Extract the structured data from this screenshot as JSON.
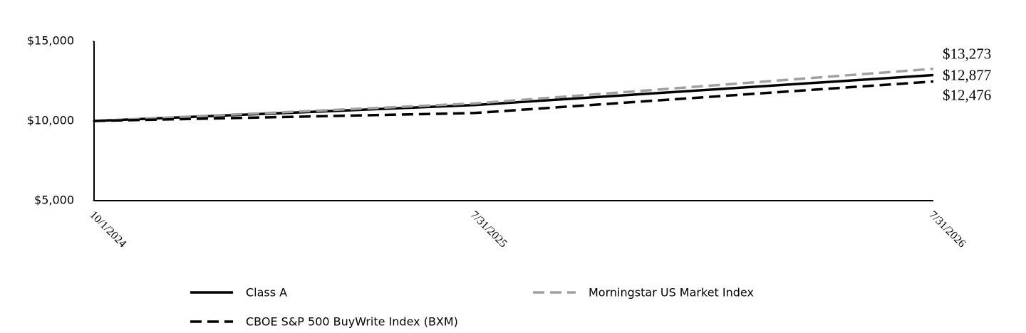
{
  "chart_data": {
    "type": "line",
    "x": [
      "10/1/2024",
      "7/31/2025",
      "7/31/2026"
    ],
    "series": [
      {
        "name": "Class A",
        "color": "#000000",
        "dash": "solid",
        "values": [
          10000,
          11000,
          12877
        ],
        "value_labels": [
          null,
          null,
          "$12,877"
        ]
      },
      {
        "name": "Morningstar US Market Index",
        "color": "#a0a0a0",
        "dash": "dashed",
        "values": [
          10000,
          11100,
          13273
        ],
        "value_labels": [
          null,
          null,
          "$13,273"
        ]
      },
      {
        "name": "CBOE S&P 500 BuyWrite Index (BXM)",
        "color": "#000000",
        "dash": "dashed",
        "values": [
          10000,
          10500,
          12476
        ],
        "value_labels": [
          null,
          null,
          "$12,476"
        ]
      }
    ],
    "ylim": [
      5000,
      15000
    ],
    "yticks": [
      {
        "value": 5000,
        "label": "$5,000"
      },
      {
        "value": 10000,
        "label": "$10,000"
      },
      {
        "value": 15000,
        "label": "$15,000"
      }
    ],
    "grid": false,
    "legend": "bottom"
  }
}
